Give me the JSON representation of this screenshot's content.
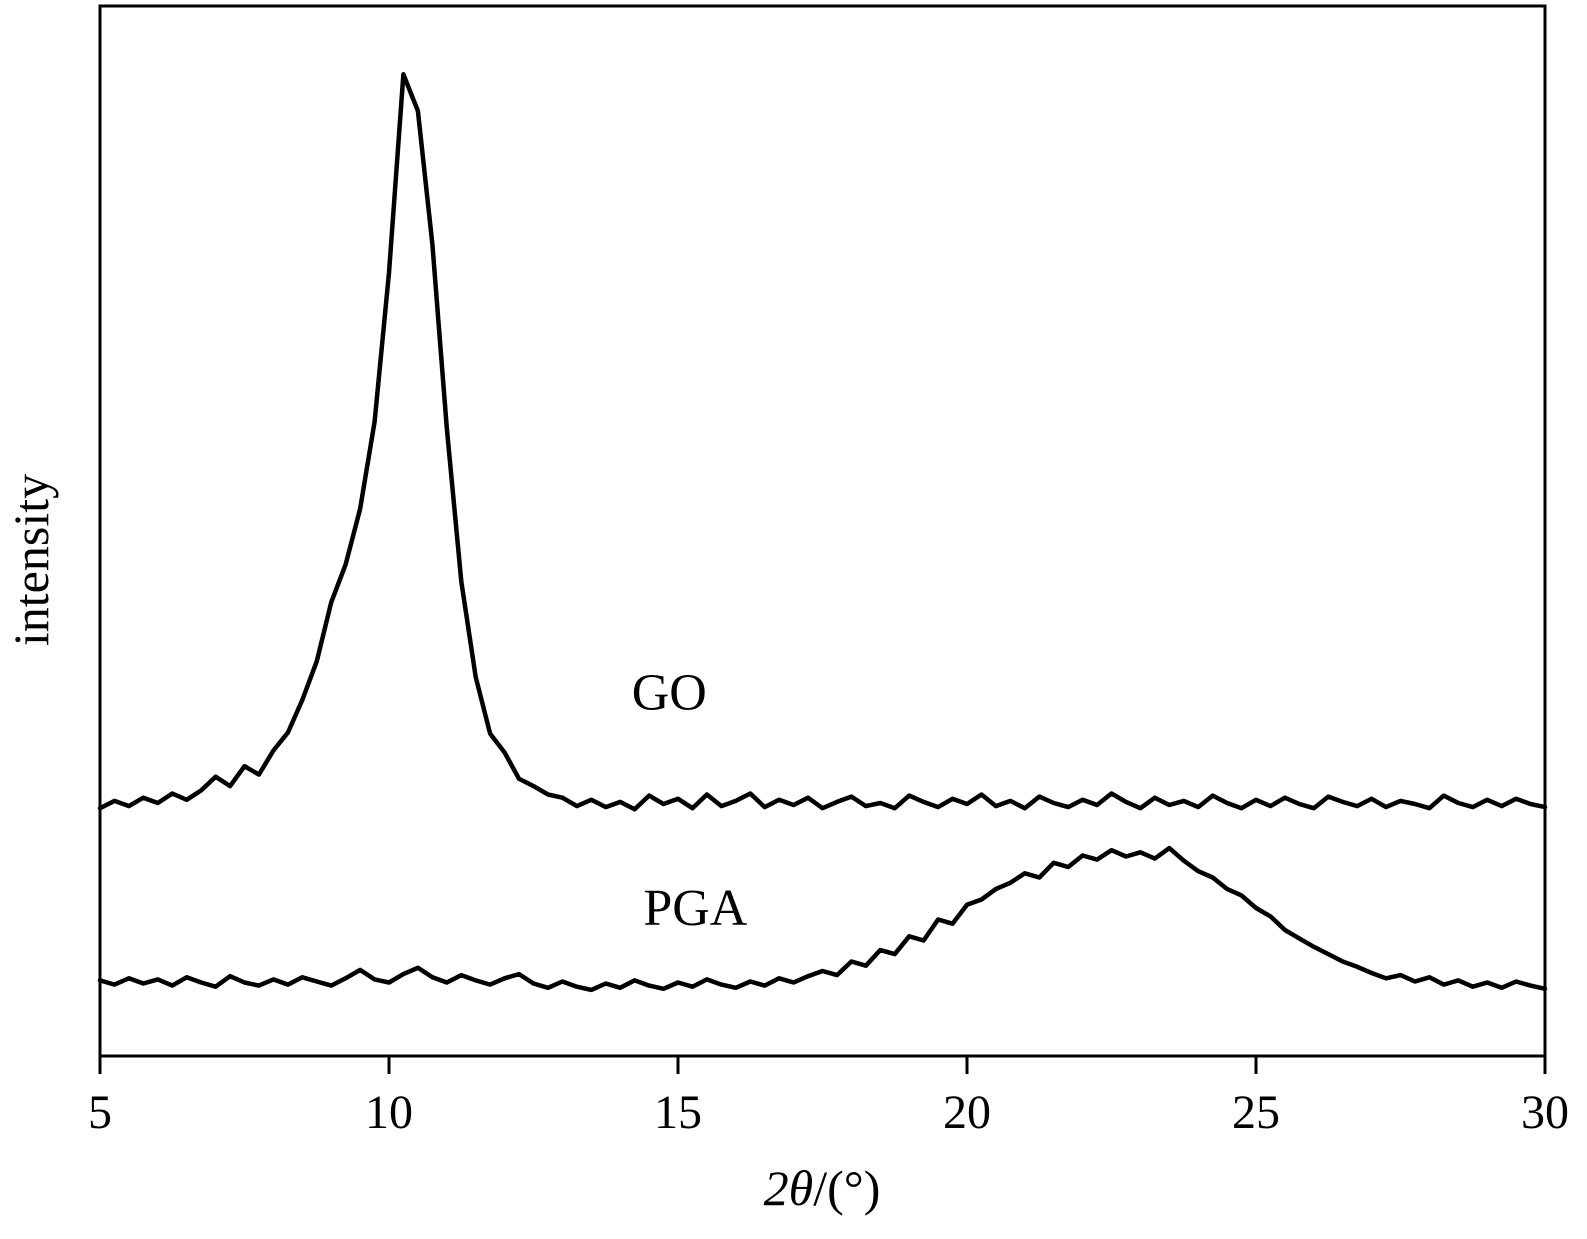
{
  "figure": {
    "background": "#ffffff",
    "frame_color": "#000000",
    "line_color": "#000000",
    "line_width": 4.5,
    "frame_width": 3
  },
  "chart_data": {
    "type": "line",
    "title": "",
    "ylabel": "intensity",
    "xlabel_parts": [
      {
        "text": "2θ",
        "italic": true
      },
      {
        "text": "/(°)",
        "italic": false
      }
    ],
    "x_range": [
      5,
      30
    ],
    "y_range": [
      0,
      100
    ],
    "x_ticks": [
      5,
      10,
      15,
      20,
      25,
      30
    ],
    "y_ticks": [],
    "grid": false,
    "legend_position": "inline-annotations",
    "x_start": 5.0,
    "x_step": 0.25,
    "series": [
      {
        "name": "GO",
        "peak_center": 10.35,
        "peak_note": "sharp diffraction peak at ~10.3 deg, baseline ~24",
        "label_anchor": {
          "x": 14.2,
          "y": 33
        },
        "values": [
          23.6,
          24.3,
          23.8,
          24.6,
          24.1,
          25.0,
          24.4,
          25.3,
          26.6,
          25.7,
          27.6,
          26.8,
          29.1,
          30.8,
          33.9,
          37.6,
          43.2,
          46.8,
          52.1,
          60.4,
          74.6,
          93.5,
          90.0,
          77.3,
          59.8,
          45.2,
          36.1,
          30.7,
          28.9,
          26.4,
          25.7,
          24.9,
          24.6,
          23.8,
          24.4,
          23.7,
          24.2,
          23.5,
          24.8,
          24.0,
          24.5,
          23.6,
          24.9,
          23.8,
          24.3,
          25.0,
          23.7,
          24.4,
          23.9,
          24.6,
          23.6,
          24.2,
          24.7,
          23.8,
          24.1,
          23.6,
          24.8,
          24.2,
          23.7,
          24.5,
          24.0,
          24.9,
          23.8,
          24.3,
          23.6,
          24.7,
          24.1,
          23.7,
          24.4,
          23.9,
          25.0,
          24.2,
          23.6,
          24.6,
          23.9,
          24.3,
          23.7,
          24.8,
          24.1,
          23.6,
          24.4,
          23.8,
          24.6,
          24.0,
          23.6,
          24.7,
          24.2,
          23.8,
          24.5,
          23.7,
          24.3,
          24.0,
          23.6,
          24.8,
          24.1,
          23.7,
          24.4,
          23.8,
          24.5,
          24.0,
          23.7
        ]
      },
      {
        "name": "PGA",
        "peak_center": 22.5,
        "peak_note": "broad amorphous halo centered ~22.5 deg, baseline ~7",
        "label_anchor": {
          "x": 14.4,
          "y": 12.5
        },
        "values": [
          7.2,
          6.8,
          7.4,
          6.9,
          7.3,
          6.7,
          7.5,
          7.0,
          6.6,
          7.6,
          7.0,
          6.7,
          7.3,
          6.8,
          7.5,
          7.1,
          6.7,
          7.4,
          8.2,
          7.3,
          7.0,
          7.8,
          8.4,
          7.5,
          7.0,
          7.7,
          7.2,
          6.8,
          7.4,
          7.8,
          6.9,
          6.5,
          7.1,
          6.6,
          6.3,
          6.9,
          6.5,
          7.2,
          6.7,
          6.4,
          7.0,
          6.6,
          7.3,
          6.8,
          6.5,
          7.1,
          6.7,
          7.4,
          7.0,
          7.6,
          8.1,
          7.7,
          9.0,
          8.6,
          10.1,
          9.7,
          11.4,
          11.0,
          13.0,
          12.6,
          14.4,
          14.9,
          15.9,
          16.5,
          17.4,
          17.0,
          18.4,
          18.0,
          19.1,
          18.7,
          19.6,
          19.0,
          19.4,
          18.8,
          19.8,
          18.6,
          17.6,
          17.0,
          15.9,
          15.3,
          14.1,
          13.3,
          12.0,
          11.2,
          10.4,
          9.7,
          9.0,
          8.5,
          7.9,
          7.4,
          7.7,
          7.1,
          7.5,
          6.8,
          7.2,
          6.6,
          7.0,
          6.5,
          7.1,
          6.7,
          6.4
        ]
      }
    ]
  }
}
